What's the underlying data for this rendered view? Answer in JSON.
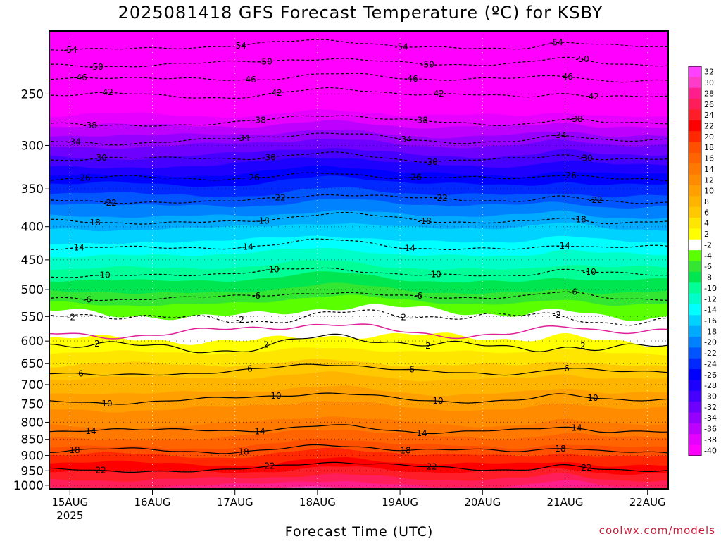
{
  "chart_data": {
    "type": "heatmap",
    "title": "2025081418 GFS Forecast Temperature (ºC) for KSBY",
    "xlabel": "Forecast Time (UTC)",
    "ylabel": "",
    "x_ticks": [
      "15AUG",
      "16AUG",
      "17AUG",
      "18AUG",
      "19AUG",
      "20AUG",
      "21AUG",
      "22AUG"
    ],
    "x_year": "2025",
    "x_range": [
      "2025-08-14T18",
      "2025-08-22T06"
    ],
    "y_ticks": [
      250,
      300,
      350,
      400,
      450,
      500,
      550,
      600,
      650,
      700,
      750,
      800,
      850,
      900,
      950,
      1000
    ],
    "ylim": [
      1013,
      200
    ],
    "y_scale": "log",
    "grid": true,
    "ground_color": "#a0522d",
    "colorbar": {
      "levels": [
        32,
        30,
        28,
        26,
        24,
        22,
        20,
        18,
        16,
        14,
        12,
        10,
        8,
        6,
        4,
        2,
        -2,
        -4,
        -6,
        -8,
        -10,
        -12,
        -14,
        -16,
        -18,
        -20,
        -22,
        -24,
        -26,
        -28,
        -30,
        -32,
        -34,
        -36,
        -38,
        -40
      ],
      "colors": [
        "#ff40ff",
        "#ff3cc8",
        "#ff1e8c",
        "#ff1e5a",
        "#ff1e28",
        "#ff0000",
        "#ff2800",
        "#ff5000",
        "#ff6400",
        "#ff7800",
        "#ff8c00",
        "#ffa000",
        "#ffb400",
        "#ffc800",
        "#ffe600",
        "#ffff00",
        "#ffffff",
        "#5aff00",
        "#32e632",
        "#00e650",
        "#00ff96",
        "#00ffc8",
        "#00ffff",
        "#00d2ff",
        "#00aaff",
        "#0082ff",
        "#0055ff",
        "#0028ff",
        "#0000ff",
        "#1e00ff",
        "#4600ff",
        "#6e00ff",
        "#9600ff",
        "#be00ff",
        "#e600ff",
        "#ff00ff"
      ]
    },
    "isotherm_levels": [
      {
        "t": -54,
        "p": 212
      },
      {
        "t": -50,
        "p": 225
      },
      {
        "t": -46,
        "p": 238
      },
      {
        "t": -42,
        "p": 252
      },
      {
        "t": -38,
        "p": 277
      },
      {
        "t": -34,
        "p": 295
      },
      {
        "t": -30,
        "p": 316
      },
      {
        "t": -26,
        "p": 338
      },
      {
        "t": -22,
        "p": 365
      },
      {
        "t": -18,
        "p": 393
      },
      {
        "t": -14,
        "p": 432
      },
      {
        "t": -10,
        "p": 475
      },
      {
        "t": -6,
        "p": 515
      },
      {
        "t": -2,
        "p": 555
      },
      {
        "t": 2,
        "p": 612
      },
      {
        "t": 6,
        "p": 670
      },
      {
        "t": 10,
        "p": 740
      },
      {
        "t": 14,
        "p": 828
      },
      {
        "t": 18,
        "p": 888
      },
      {
        "t": 22,
        "p": 945
      }
    ],
    "freezing_level_p": 582
  },
  "credit": "coolwx.com/models"
}
